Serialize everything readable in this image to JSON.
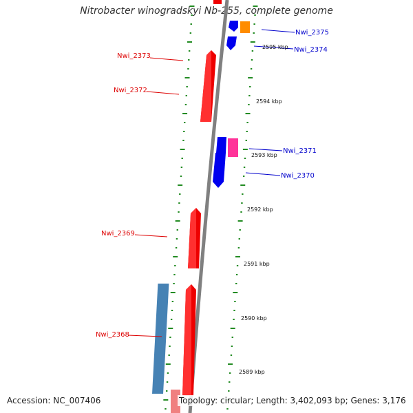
{
  "title": "Nitrobacter winogradskyi Nb-255, complete genome",
  "footer": {
    "accession": "Accession: NC_007406",
    "topology": "Topology: circular; Length: 3,402,093 bp; Genes: 3,176"
  },
  "colors": {
    "forward_gene": "#ff0000",
    "reverse_gene": "#0000ee",
    "rna_gene_orange": "#ff8c00",
    "rna_gene_pink": "#ff3399",
    "region_blue": "#4682b4",
    "region_pink": "#f08080",
    "backbone": "#808080",
    "ticks": "#228b22",
    "forward_label": "#dd0000",
    "reverse_label": "#0000cc"
  },
  "scale_labels": [
    "2595 kbp",
    "2594 kbp",
    "2593 kbp",
    "2592 kbp",
    "2591 kbp",
    "2590 kbp",
    "2589 kbp"
  ],
  "genes": [
    {
      "name": "Nwi_2375",
      "strand": "reverse"
    },
    {
      "name": "Nwi_2374",
      "strand": "reverse"
    },
    {
      "name": "Nwi_2373",
      "strand": "forward"
    },
    {
      "name": "Nwi_2372",
      "strand": "forward"
    },
    {
      "name": "Nwi_2371",
      "strand": "reverse"
    },
    {
      "name": "Nwi_2370",
      "strand": "reverse"
    },
    {
      "name": "Nwi_2369",
      "strand": "forward"
    },
    {
      "name": "Nwi_2368",
      "strand": "forward"
    }
  ]
}
